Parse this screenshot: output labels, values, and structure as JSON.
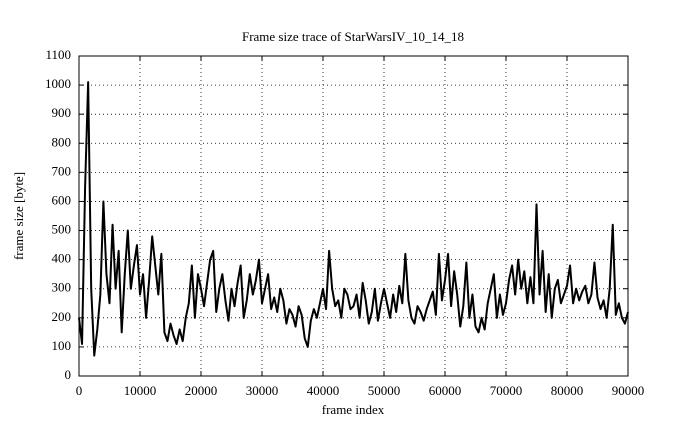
{
  "chart_data": {
    "type": "line",
    "title": "Frame size trace of StarWarsIV_10_14_18",
    "x_label": "frame index",
    "y_label": "frame size [byte]",
    "x": [
      0,
      500,
      1000,
      1500,
      2000,
      2500,
      3000,
      3500,
      4000,
      4500,
      5000,
      5500,
      6000,
      6500,
      7000,
      7500,
      8000,
      8500,
      9000,
      9500,
      10000,
      10500,
      11000,
      11500,
      12000,
      12500,
      13000,
      13500,
      14000,
      14500,
      15000,
      15500,
      16000,
      16500,
      17000,
      17500,
      18000,
      18500,
      19000,
      19500,
      20000,
      20500,
      21000,
      21500,
      22000,
      22500,
      23000,
      23500,
      24000,
      24500,
      25000,
      25500,
      26000,
      26500,
      27000,
      27500,
      28000,
      28500,
      29000,
      29500,
      30000,
      30500,
      31000,
      31500,
      32000,
      32500,
      33000,
      33500,
      34000,
      34500,
      35000,
      35500,
      36000,
      36500,
      37000,
      37500,
      38000,
      38500,
      39000,
      39500,
      40000,
      40500,
      41000,
      41500,
      42000,
      42500,
      43000,
      43500,
      44000,
      44500,
      45000,
      45500,
      46000,
      46500,
      47000,
      47500,
      48000,
      48500,
      49000,
      49500,
      50000,
      50500,
      51000,
      51500,
      52000,
      52500,
      53000,
      53500,
      54000,
      54500,
      55000,
      55500,
      56000,
      56500,
      57000,
      57500,
      58000,
      58500,
      59000,
      59500,
      60000,
      60500,
      61000,
      61500,
      62000,
      62500,
      63000,
      63500,
      64000,
      64500,
      65000,
      65500,
      66000,
      66500,
      67000,
      67500,
      68000,
      68500,
      69000,
      69500,
      70000,
      70500,
      71000,
      71500,
      72000,
      72500,
      73000,
      73500,
      74000,
      74500,
      75000,
      75500,
      76000,
      76500,
      77000,
      77500,
      78000,
      78500,
      79000,
      79500,
      80000,
      80500,
      81000,
      81500,
      82000,
      82500,
      83000,
      83500,
      84000,
      84500,
      85000,
      85500,
      86000,
      86500,
      87000,
      87500,
      88000,
      88500,
      89000,
      89500,
      90000
    ],
    "series": [
      {
        "name": "frame size",
        "color": "#000000",
        "values": [
          200,
          110,
          650,
          1010,
          300,
          70,
          160,
          280,
          600,
          350,
          250,
          520,
          300,
          430,
          150,
          350,
          500,
          300,
          380,
          450,
          280,
          350,
          200,
          330,
          480,
          380,
          280,
          420,
          150,
          120,
          180,
          140,
          110,
          160,
          120,
          200,
          250,
          380,
          200,
          350,
          300,
          240,
          320,
          400,
          430,
          220,
          300,
          350,
          260,
          190,
          300,
          240,
          320,
          380,
          200,
          260,
          350,
          280,
          330,
          400,
          250,
          300,
          350,
          230,
          270,
          220,
          300,
          260,
          180,
          230,
          210,
          170,
          240,
          210,
          130,
          100,
          190,
          230,
          200,
          250,
          300,
          230,
          430,
          300,
          240,
          260,
          200,
          300,
          280,
          230,
          240,
          280,
          200,
          320,
          260,
          180,
          220,
          300,
          190,
          250,
          300,
          250,
          200,
          280,
          220,
          310,
          250,
          420,
          260,
          200,
          180,
          240,
          220,
          190,
          230,
          260,
          290,
          210,
          420,
          260,
          330,
          420,
          240,
          360,
          280,
          170,
          240,
          390,
          200,
          280,
          170,
          150,
          200,
          160,
          250,
          300,
          350,
          200,
          280,
          210,
          250,
          330,
          380,
          280,
          400,
          300,
          360,
          250,
          340,
          250,
          590,
          280,
          430,
          220,
          350,
          200,
          300,
          330,
          250,
          280,
          310,
          380,
          250,
          300,
          260,
          290,
          310,
          250,
          280,
          390,
          270,
          230,
          260,
          200,
          300,
          520,
          210,
          250,
          200,
          180,
          220
        ]
      }
    ],
    "xlim": [
      0,
      90000
    ],
    "ylim": [
      0,
      1100
    ],
    "xticks": [
      0,
      10000,
      20000,
      30000,
      40000,
      50000,
      60000,
      70000,
      80000,
      90000
    ],
    "yticks": [
      0,
      100,
      200,
      300,
      400,
      500,
      600,
      700,
      800,
      900,
      1000,
      1100
    ],
    "grid": true
  }
}
